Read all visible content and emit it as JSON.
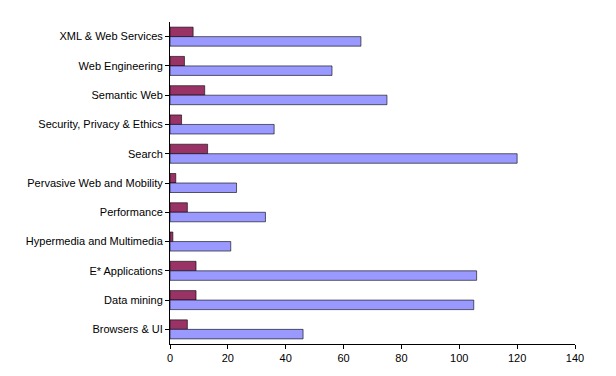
{
  "chart_data": {
    "type": "bar",
    "orientation": "horizontal",
    "categories": [
      "XML & Web Services",
      "Web Engineering",
      "Semantic Web",
      "Security, Privacy & Ethics",
      "Search",
      "Pervasive Web and Mobility",
      "Performance",
      "Hypermedia and Multimedia",
      "E* Applications",
      "Data mining",
      "Browsers & UI"
    ],
    "series": [
      {
        "color": "#993366",
        "values": [
          8,
          5,
          12,
          4,
          13,
          2,
          6,
          1,
          9,
          9,
          6
        ]
      },
      {
        "color": "#9999ff",
        "values": [
          66,
          56,
          75,
          36,
          120,
          23,
          33,
          21,
          106,
          105,
          46
        ]
      }
    ],
    "xlim": [
      0,
      140
    ],
    "xticks": [
      0,
      20,
      40,
      60,
      80,
      100,
      120,
      140
    ],
    "grid": false
  }
}
